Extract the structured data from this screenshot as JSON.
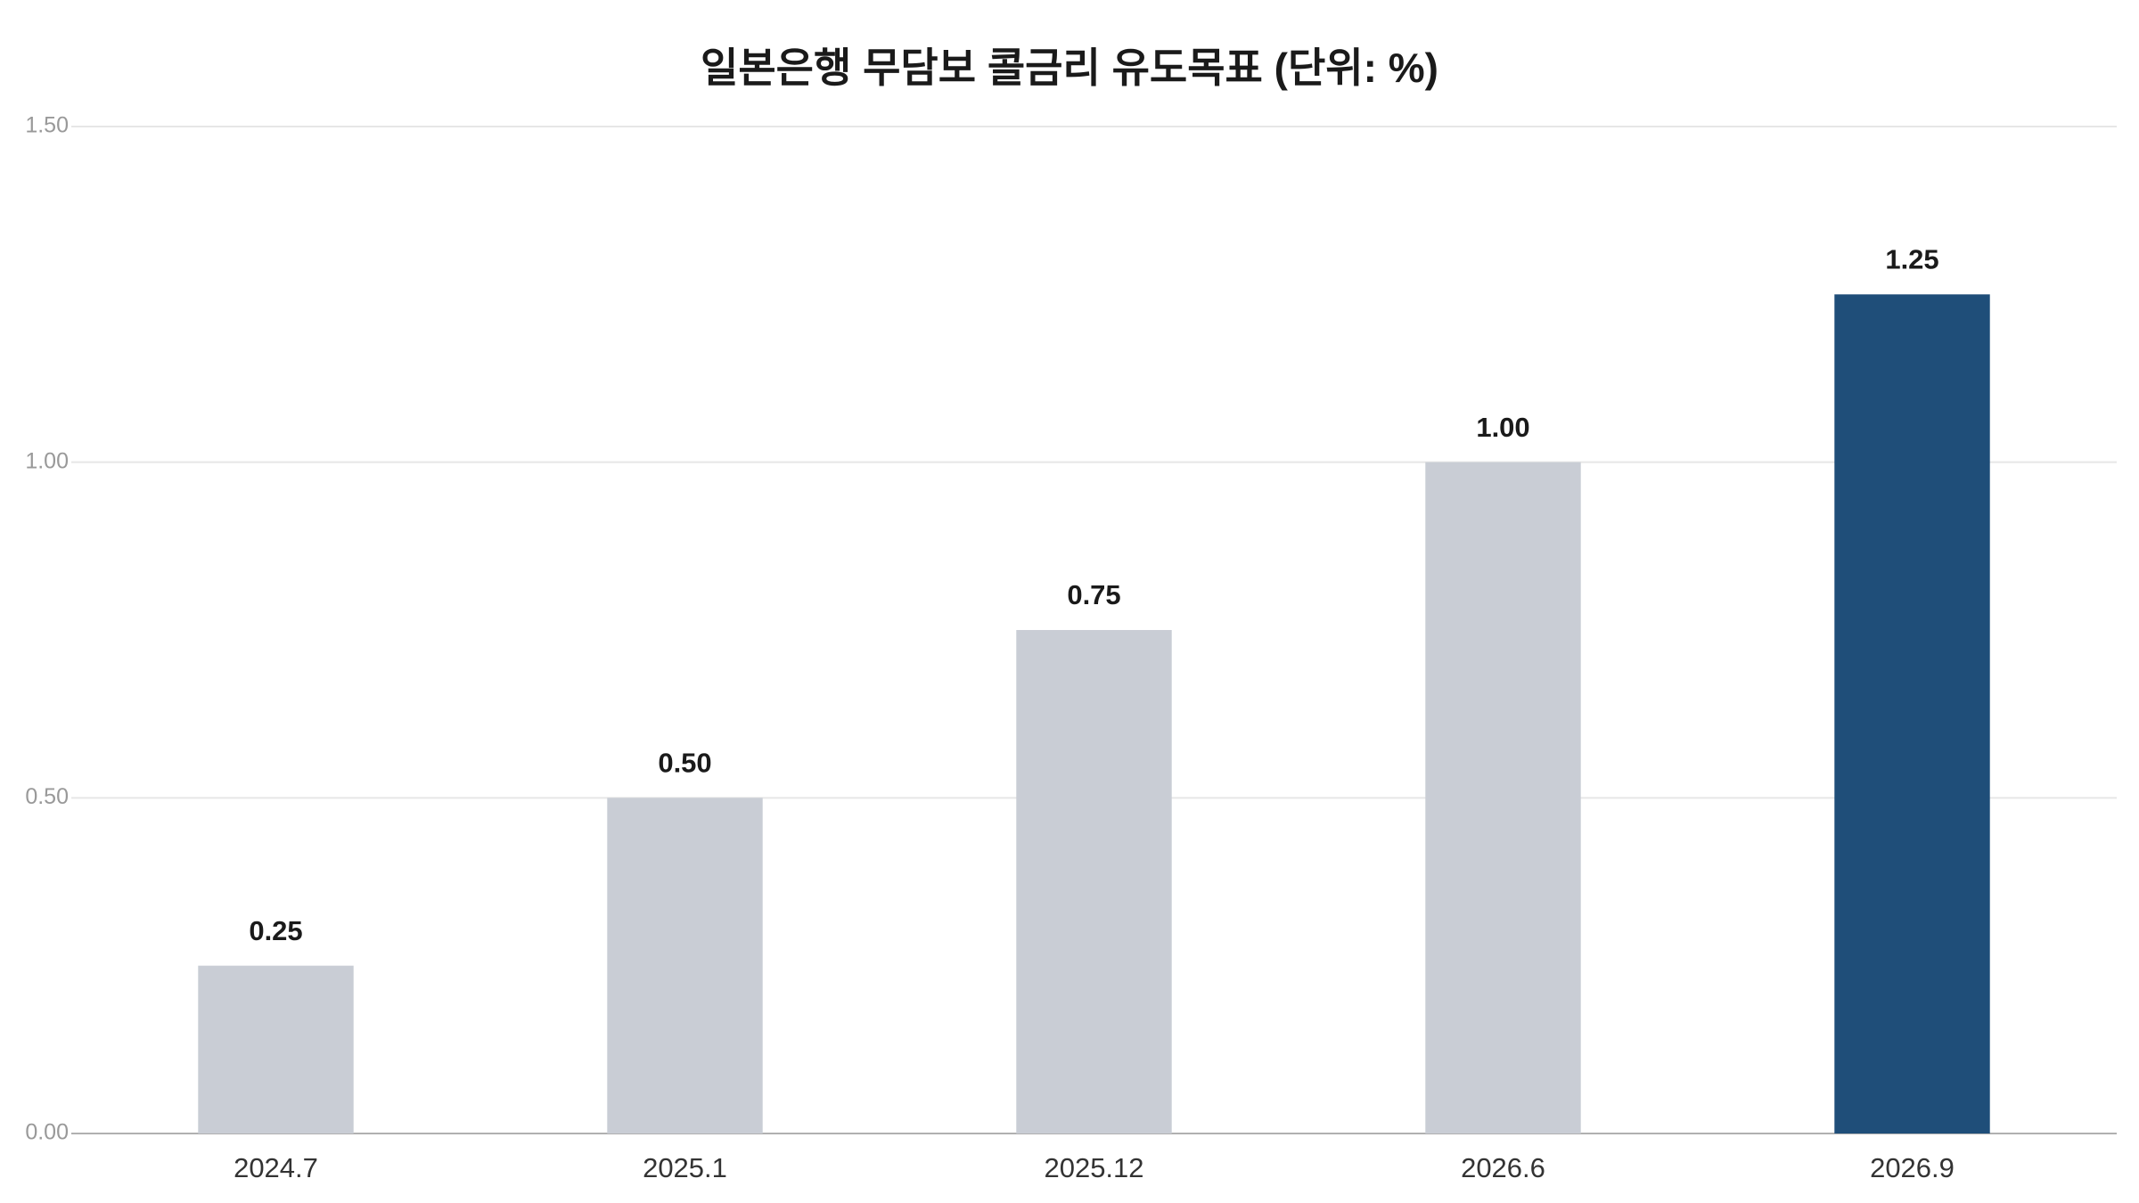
{
  "chart_data": {
    "type": "bar",
    "title": "일본은행 무담보 콜금리 유도목표 (단위: %)",
    "categories": [
      "2024.7",
      "2025.1",
      "2025.12",
      "2026.6",
      "2026.9"
    ],
    "values": [
      0.25,
      0.5,
      0.75,
      1.0,
      1.25
    ],
    "value_labels": [
      "0.25",
      "0.50",
      "0.75",
      "1.00",
      "1.25"
    ],
    "colors": [
      "#c9cdd5",
      "#c9cdd5",
      "#c9cdd5",
      "#c9cdd5",
      "#1f4e79"
    ],
    "ylim": [
      0,
      1.5
    ],
    "yticks": [
      {
        "value": 0,
        "label": "0.00"
      },
      {
        "value": 0.5,
        "label": "0.50"
      },
      {
        "value": 1,
        "label": "1.00"
      },
      {
        "value": 1.5,
        "label": "1.50"
      }
    ],
    "grid": true
  }
}
